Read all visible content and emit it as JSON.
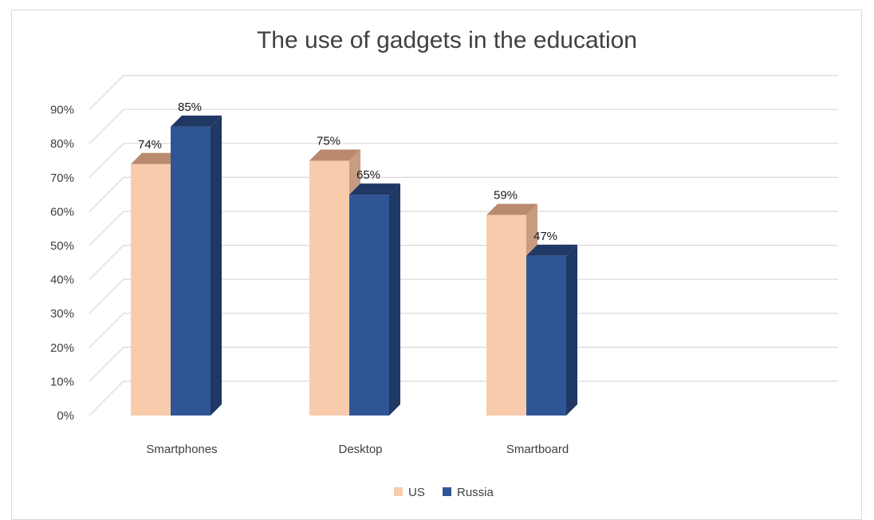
{
  "chart_data": {
    "type": "bar",
    "title": "The use of gadgets in the education",
    "categories": [
      "Smartphones",
      "Desktop",
      "Smartboard"
    ],
    "series": [
      {
        "name": "US",
        "values": [
          74,
          75,
          59
        ],
        "labels": [
          "74%",
          "75%",
          "59%"
        ]
      },
      {
        "name": "Russia",
        "values": [
          85,
          65,
          47
        ],
        "labels": [
          "85%",
          "65%",
          "47%"
        ]
      }
    ],
    "ylim": [
      0,
      90
    ],
    "yticks": [
      "0%",
      "10%",
      "20%",
      "30%",
      "40%",
      "50%",
      "60%",
      "70%",
      "80%",
      "90%"
    ],
    "grid": true,
    "legend": "bottom",
    "colors": {
      "US": {
        "front": "#f8cbad",
        "side": "#c89c82",
        "top": "#b98a6e"
      },
      "Russia": {
        "front": "#2f5597",
        "side": "#1f3864",
        "top": "#203864"
      }
    }
  }
}
